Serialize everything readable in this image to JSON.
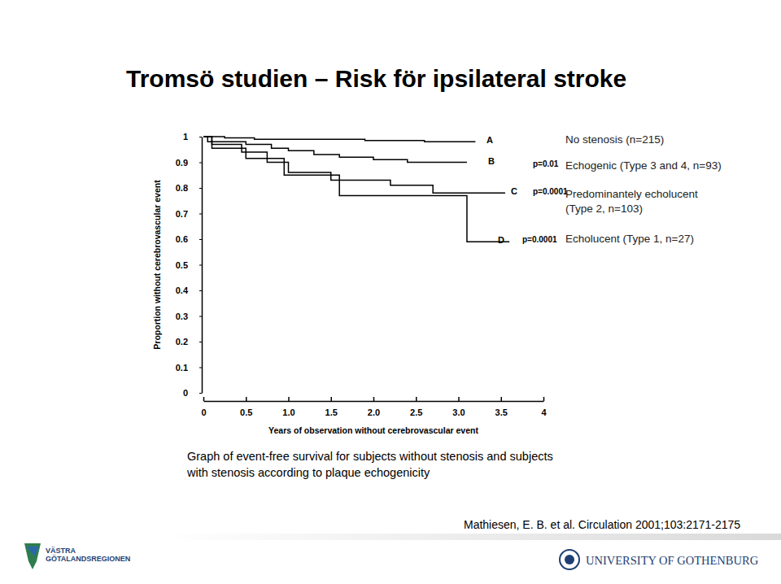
{
  "chart_data": {
    "type": "line",
    "title": "Tromsö studien – Risk för ipsilateral stroke",
    "x_label": "Years of observation without cerebrovascular event",
    "y_label": "Proportion without cerebrovascular event",
    "line_style": "step",
    "xlim": [
      0,
      4
    ],
    "ylim": [
      0,
      1
    ],
    "xticks": [
      0,
      0.5,
      {
        "value": 1,
        "label": "1.0"
      },
      1.5,
      {
        "value": 2,
        "label": "2.0"
      },
      2.5,
      {
        "value": 3,
        "label": "3.0"
      },
      3.5,
      4
    ],
    "yticks": [
      0,
      0.1,
      0.2,
      0.3,
      0.4,
      0.5,
      0.6,
      0.7,
      0.8,
      0.9,
      1
    ],
    "series": [
      {
        "letter": "A",
        "name": [
          "No stenosis (n=215)"
        ],
        "color": "#000000",
        "x": [
          0,
          0.25,
          0.6,
          1.1,
          1.9,
          2.6,
          3.2
        ],
        "values": [
          1,
          0.995,
          0.99,
          0.99,
          0.985,
          0.98,
          0.98
        ]
      },
      {
        "letter": "B",
        "p_value": "p=0.01",
        "name": [
          "Echogenic (Type 3 and 4, n=93)"
        ],
        "color": "#000000",
        "x": [
          0,
          0.05,
          0.5,
          0.8,
          1.0,
          1.3,
          1.6,
          2.0,
          2.4,
          3.1
        ],
        "values": [
          1,
          0.98,
          0.97,
          0.955,
          0.945,
          0.93,
          0.92,
          0.91,
          0.9,
          0.9
        ]
      },
      {
        "letter": "C",
        "p_value": "p=0.0001",
        "name": [
          "Predominantely echolucent",
          "(Type 2, n=103)"
        ],
        "color": "#000000",
        "x": [
          0,
          0.1,
          0.45,
          0.75,
          1.0,
          1.5,
          2.2,
          2.7,
          3.55
        ],
        "values": [
          1,
          0.97,
          0.94,
          0.9,
          0.86,
          0.83,
          0.81,
          0.78,
          0.78
        ]
      },
      {
        "letter": "D",
        "p_value": "p=0.0001",
        "name": [
          "Echolucent (Type 1, n=27)"
        ],
        "color": "#000000",
        "x": [
          0,
          0.1,
          0.5,
          0.95,
          1.6,
          3.1,
          3.6
        ],
        "values": [
          1,
          0.955,
          0.915,
          0.85,
          0.77,
          0.59,
          0.59
        ]
      }
    ],
    "caption": [
      "Graph of event-free survival for subjects without stenosis and subjects",
      "with stenosis according to plaque echogenicity"
    ],
    "source": "Mathiesen, E. B. et al. Circulation 2001;103:2171-2175",
    "footer_left": [
      "VÄSTRA",
      "GÖTALANDSREGIONEN"
    ],
    "footer_right": "UNIVERSITY OF GOTHENBURG"
  }
}
